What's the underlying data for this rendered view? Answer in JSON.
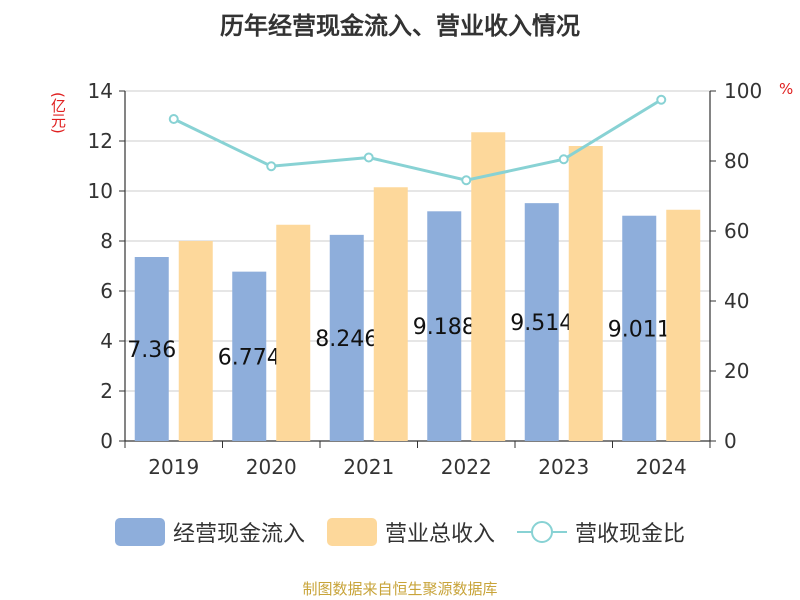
{
  "chart_data": {
    "type": "bar",
    "title": "历年经营现金流入、营业收入情况",
    "categories": [
      "2019",
      "2020",
      "2021",
      "2022",
      "2023",
      "2024"
    ],
    "series": [
      {
        "name": "经营现金流入",
        "type": "bar",
        "axis": "left",
        "color": "#8eaedb",
        "values": [
          7.36,
          6.774,
          8.246,
          9.188,
          9.514,
          9.011
        ],
        "labels": [
          "7.36",
          "6.774",
          "8.246",
          "9.188",
          "9.514",
          "9.011"
        ]
      },
      {
        "name": "营业总收入",
        "type": "bar",
        "axis": "left",
        "color": "#fdd89b",
        "values": [
          8.0,
          8.65,
          10.15,
          12.35,
          11.8,
          9.25
        ]
      },
      {
        "name": "营收现金比",
        "type": "line",
        "axis": "right",
        "color": "#88d2d4",
        "values": [
          92,
          78.5,
          81,
          74.5,
          80.5,
          97.5
        ]
      }
    ],
    "y_left": {
      "label": "(亿元)",
      "min": 0,
      "max": 14,
      "ticks": [
        0,
        2,
        4,
        6,
        8,
        10,
        12,
        14
      ]
    },
    "y_right": {
      "label": "%",
      "min": 0,
      "max": 100,
      "ticks": [
        0,
        20,
        40,
        60,
        80,
        100
      ]
    },
    "grid": true,
    "legend": "bottom",
    "source": "制图数据来自恒生聚源数据库"
  }
}
